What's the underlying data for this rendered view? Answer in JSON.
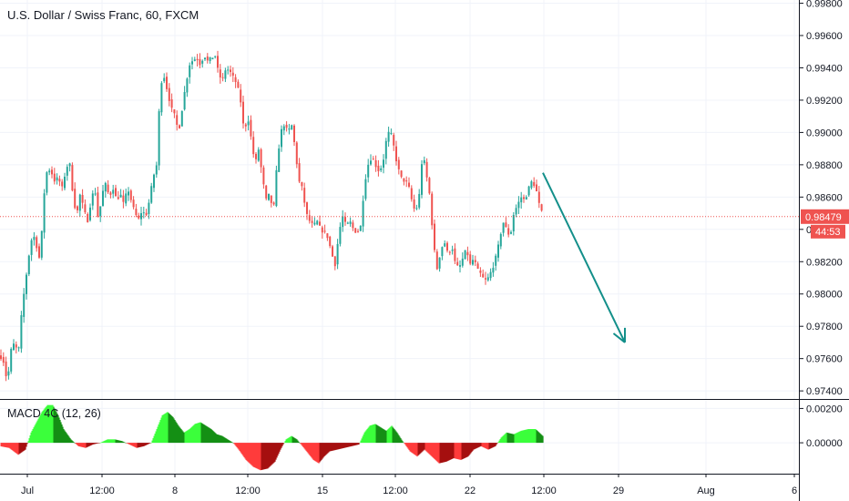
{
  "header": {
    "title": "U.S. Dollar / Swiss Franc, 60, FXCM",
    "indicator_label": "MACD 4C (12, 26)"
  },
  "price_badge": {
    "value": "0.98479",
    "countdown": "44:53"
  },
  "colors": {
    "up": "#26a69a",
    "down": "#ef5350",
    "badge": "#ef5350",
    "arrow": "#138f8a",
    "macd_pos_light": "#3bff3b",
    "macd_pos_dark": "#148f14",
    "macd_neg_light": "#ff3b3b",
    "macd_neg_dark": "#a50f0f"
  },
  "chart_data": {
    "type": "candlestick",
    "title": "U.S. Dollar / Swiss Franc, 60, FXCM",
    "y_axis_ticks": [
      "0.99800",
      "0.99600",
      "0.99400",
      "0.99200",
      "0.99000",
      "0.98800",
      "0.98600",
      "0.98400",
      "0.98200",
      "0.98000",
      "0.97800",
      "0.97600",
      "0.97400"
    ],
    "ylim": [
      0.9735,
      0.9982
    ],
    "x_axis_ticks": [
      "Jul",
      "12:00",
      "8",
      "12:00",
      "15",
      "12:00",
      "22",
      "12:00",
      "29",
      "Aug",
      "6"
    ],
    "last_price": 0.98479,
    "price_path": [
      [
        0,
        0.9762
      ],
      [
        4,
        0.9758
      ],
      [
        8,
        0.9745
      ],
      [
        12,
        0.9765
      ],
      [
        16,
        0.977
      ],
      [
        20,
        0.9762
      ],
      [
        24,
        0.979
      ],
      [
        28,
        0.9808
      ],
      [
        32,
        0.9825
      ],
      [
        36,
        0.9838
      ],
      [
        40,
        0.983
      ],
      [
        44,
        0.982
      ],
      [
        48,
        0.986
      ],
      [
        52,
        0.9878
      ],
      [
        56,
        0.9876
      ],
      [
        60,
        0.987
      ],
      [
        64,
        0.9872
      ],
      [
        68,
        0.9865
      ],
      [
        72,
        0.9876
      ],
      [
        76,
        0.9883
      ],
      [
        80,
        0.9862
      ],
      [
        84,
        0.9848
      ],
      [
        88,
        0.9862
      ],
      [
        92,
        0.9852
      ],
      [
        96,
        0.9845
      ],
      [
        100,
        0.9858
      ],
      [
        104,
        0.9866
      ],
      [
        108,
        0.9845
      ],
      [
        112,
        0.9862
      ],
      [
        116,
        0.9868
      ],
      [
        120,
        0.986
      ],
      [
        124,
        0.9866
      ],
      [
        128,
        0.9858
      ],
      [
        132,
        0.9862
      ],
      [
        136,
        0.9855
      ],
      [
        140,
        0.9866
      ],
      [
        144,
        0.9858
      ],
      [
        148,
        0.985
      ],
      [
        152,
        0.9846
      ],
      [
        156,
        0.9852
      ],
      [
        160,
        0.9848
      ],
      [
        164,
        0.9858
      ],
      [
        168,
        0.9872
      ],
      [
        172,
        0.988
      ],
      [
        176,
        0.993
      ],
      [
        180,
        0.9935
      ],
      [
        184,
        0.9925
      ],
      [
        188,
        0.9915
      ],
      [
        192,
        0.991
      ],
      [
        196,
        0.99
      ],
      [
        200,
        0.9915
      ],
      [
        204,
        0.993
      ],
      [
        208,
        0.9942
      ],
      [
        212,
        0.9945
      ],
      [
        216,
        0.9946
      ],
      [
        220,
        0.9942
      ],
      [
        224,
        0.9948
      ],
      [
        228,
        0.9944
      ],
      [
        232,
        0.9946
      ],
      [
        236,
        0.9948
      ],
      [
        240,
        0.9936
      ],
      [
        244,
        0.9932
      ],
      [
        248,
        0.994
      ],
      [
        252,
        0.9938
      ],
      [
        256,
        0.9934
      ],
      [
        260,
        0.993
      ],
      [
        264,
        0.992
      ],
      [
        268,
        0.99
      ],
      [
        272,
        0.991
      ],
      [
        276,
        0.9895
      ],
      [
        280,
        0.988
      ],
      [
        284,
        0.989
      ],
      [
        288,
        0.9872
      ],
      [
        292,
        0.9858
      ],
      [
        296,
        0.9862
      ],
      [
        300,
        0.985
      ],
      [
        304,
        0.988
      ],
      [
        308,
        0.99
      ],
      [
        312,
        0.9905
      ],
      [
        316,
        0.99
      ],
      [
        320,
        0.9905
      ],
      [
        324,
        0.989
      ],
      [
        328,
        0.987
      ],
      [
        332,
        0.9865
      ],
      [
        336,
        0.985
      ],
      [
        340,
        0.9845
      ],
      [
        344,
        0.9842
      ],
      [
        348,
        0.9845
      ],
      [
        352,
        0.984
      ],
      [
        356,
        0.9838
      ],
      [
        360,
        0.9835
      ],
      [
        364,
        0.9825
      ],
      [
        368,
        0.9818
      ],
      [
        372,
        0.9838
      ],
      [
        376,
        0.9848
      ],
      [
        380,
        0.9842
      ],
      [
        384,
        0.9845
      ],
      [
        388,
        0.984
      ],
      [
        392,
        0.9838
      ],
      [
        396,
        0.9842
      ],
      [
        400,
        0.9868
      ],
      [
        404,
        0.988
      ],
      [
        408,
        0.9885
      ],
      [
        412,
        0.988
      ],
      [
        416,
        0.9876
      ],
      [
        420,
        0.988
      ],
      [
        424,
        0.9895
      ],
      [
        428,
        0.9902
      ],
      [
        432,
        0.9892
      ],
      [
        436,
        0.988
      ],
      [
        440,
        0.9872
      ],
      [
        444,
        0.987
      ],
      [
        448,
        0.9868
      ],
      [
        452,
        0.9858
      ],
      [
        456,
        0.985
      ],
      [
        460,
        0.986
      ],
      [
        464,
        0.9888
      ],
      [
        468,
        0.9874
      ],
      [
        472,
        0.986
      ],
      [
        476,
        0.983
      ],
      [
        480,
        0.9815
      ],
      [
        484,
        0.9828
      ],
      [
        488,
        0.9832
      ],
      [
        492,
        0.9824
      ],
      [
        496,
        0.983
      ],
      [
        500,
        0.9818
      ],
      [
        504,
        0.9816
      ],
      [
        508,
        0.9822
      ],
      [
        512,
        0.9828
      ],
      [
        516,
        0.9818
      ],
      [
        520,
        0.9822
      ],
      [
        524,
        0.9815
      ],
      [
        528,
        0.9812
      ],
      [
        532,
        0.9808
      ],
      [
        536,
        0.981
      ],
      [
        540,
        0.9815
      ],
      [
        544,
        0.9822
      ],
      [
        548,
        0.9832
      ],
      [
        552,
        0.9845
      ],
      [
        556,
        0.984
      ],
      [
        560,
        0.9835
      ],
      [
        564,
        0.985
      ],
      [
        568,
        0.9855
      ],
      [
        572,
        0.986
      ],
      [
        576,
        0.9858
      ],
      [
        580,
        0.9865
      ],
      [
        584,
        0.987
      ],
      [
        588,
        0.9866
      ],
      [
        592,
        0.9855
      ],
      [
        596,
        0.9848
      ]
    ],
    "forecast_arrow": {
      "from": [
        596,
        0.9875
      ],
      "to": [
        686,
        0.977
      ]
    },
    "macd": {
      "name": "MACD 4C (12, 26)",
      "y_axis_ticks": [
        "0.00200",
        "0.00000"
      ],
      "ylim": [
        -0.0018,
        0.0025
      ],
      "histogram_path": [
        [
          0,
          -0.0002
        ],
        [
          10,
          -0.0003
        ],
        [
          20,
          -0.0007
        ],
        [
          28,
          -0.0004
        ],
        [
          34,
          0.0006
        ],
        [
          40,
          0.0012
        ],
        [
          46,
          0.0018
        ],
        [
          52,
          0.0022
        ],
        [
          58,
          0.0022
        ],
        [
          64,
          0.0016
        ],
        [
          70,
          0.0008
        ],
        [
          78,
          0.0002
        ],
        [
          86,
          -0.0002
        ],
        [
          94,
          -0.0003
        ],
        [
          102,
          -0.0001
        ],
        [
          110,
          0.0
        ],
        [
          118,
          0.0002
        ],
        [
          126,
          0.0002
        ],
        [
          134,
          0.0001
        ],
        [
          142,
          -0.0001
        ],
        [
          150,
          -0.0003
        ],
        [
          158,
          -0.0002
        ],
        [
          166,
          0.0
        ],
        [
          172,
          0.0008
        ],
        [
          178,
          0.0016
        ],
        [
          184,
          0.0018
        ],
        [
          190,
          0.0015
        ],
        [
          196,
          0.001
        ],
        [
          202,
          0.0006
        ],
        [
          208,
          0.0008
        ],
        [
          214,
          0.0011
        ],
        [
          220,
          0.0012
        ],
        [
          226,
          0.001
        ],
        [
          232,
          0.0008
        ],
        [
          238,
          0.0005
        ],
        [
          244,
          0.0004
        ],
        [
          250,
          0.0002
        ],
        [
          256,
          0.0
        ],
        [
          262,
          -0.0004
        ],
        [
          270,
          -0.001
        ],
        [
          278,
          -0.0014
        ],
        [
          286,
          -0.0016
        ],
        [
          294,
          -0.0015
        ],
        [
          302,
          -0.0011
        ],
        [
          308,
          -0.0004
        ],
        [
          314,
          0.0002
        ],
        [
          320,
          0.0004
        ],
        [
          326,
          0.0002
        ],
        [
          332,
          -0.0002
        ],
        [
          338,
          -0.0006
        ],
        [
          344,
          -0.001
        ],
        [
          350,
          -0.0012
        ],
        [
          356,
          -0.0008
        ],
        [
          362,
          -0.0005
        ],
        [
          370,
          -0.0004
        ],
        [
          378,
          -0.0003
        ],
        [
          386,
          -0.0002
        ],
        [
          394,
          -0.0001
        ],
        [
          400,
          0.0006
        ],
        [
          406,
          0.001
        ],
        [
          412,
          0.0011
        ],
        [
          418,
          0.0009
        ],
        [
          424,
          0.0007
        ],
        [
          430,
          0.001
        ],
        [
          436,
          0.0006
        ],
        [
          442,
          0.0001
        ],
        [
          450,
          -0.0005
        ],
        [
          458,
          -0.0008
        ],
        [
          466,
          -0.0004
        ],
        [
          474,
          -0.0008
        ],
        [
          482,
          -0.0012
        ],
        [
          490,
          -0.0011
        ],
        [
          498,
          -0.0009
        ],
        [
          506,
          -0.001
        ],
        [
          514,
          -0.0008
        ],
        [
          520,
          -0.0004
        ],
        [
          528,
          -0.0002
        ],
        [
          536,
          -0.0004
        ],
        [
          544,
          -0.0002
        ],
        [
          550,
          0.0003
        ],
        [
          556,
          0.0006
        ],
        [
          564,
          0.0005
        ],
        [
          572,
          0.0007
        ],
        [
          580,
          0.0008
        ],
        [
          588,
          0.0008
        ],
        [
          596,
          0.0004
        ]
      ]
    }
  }
}
